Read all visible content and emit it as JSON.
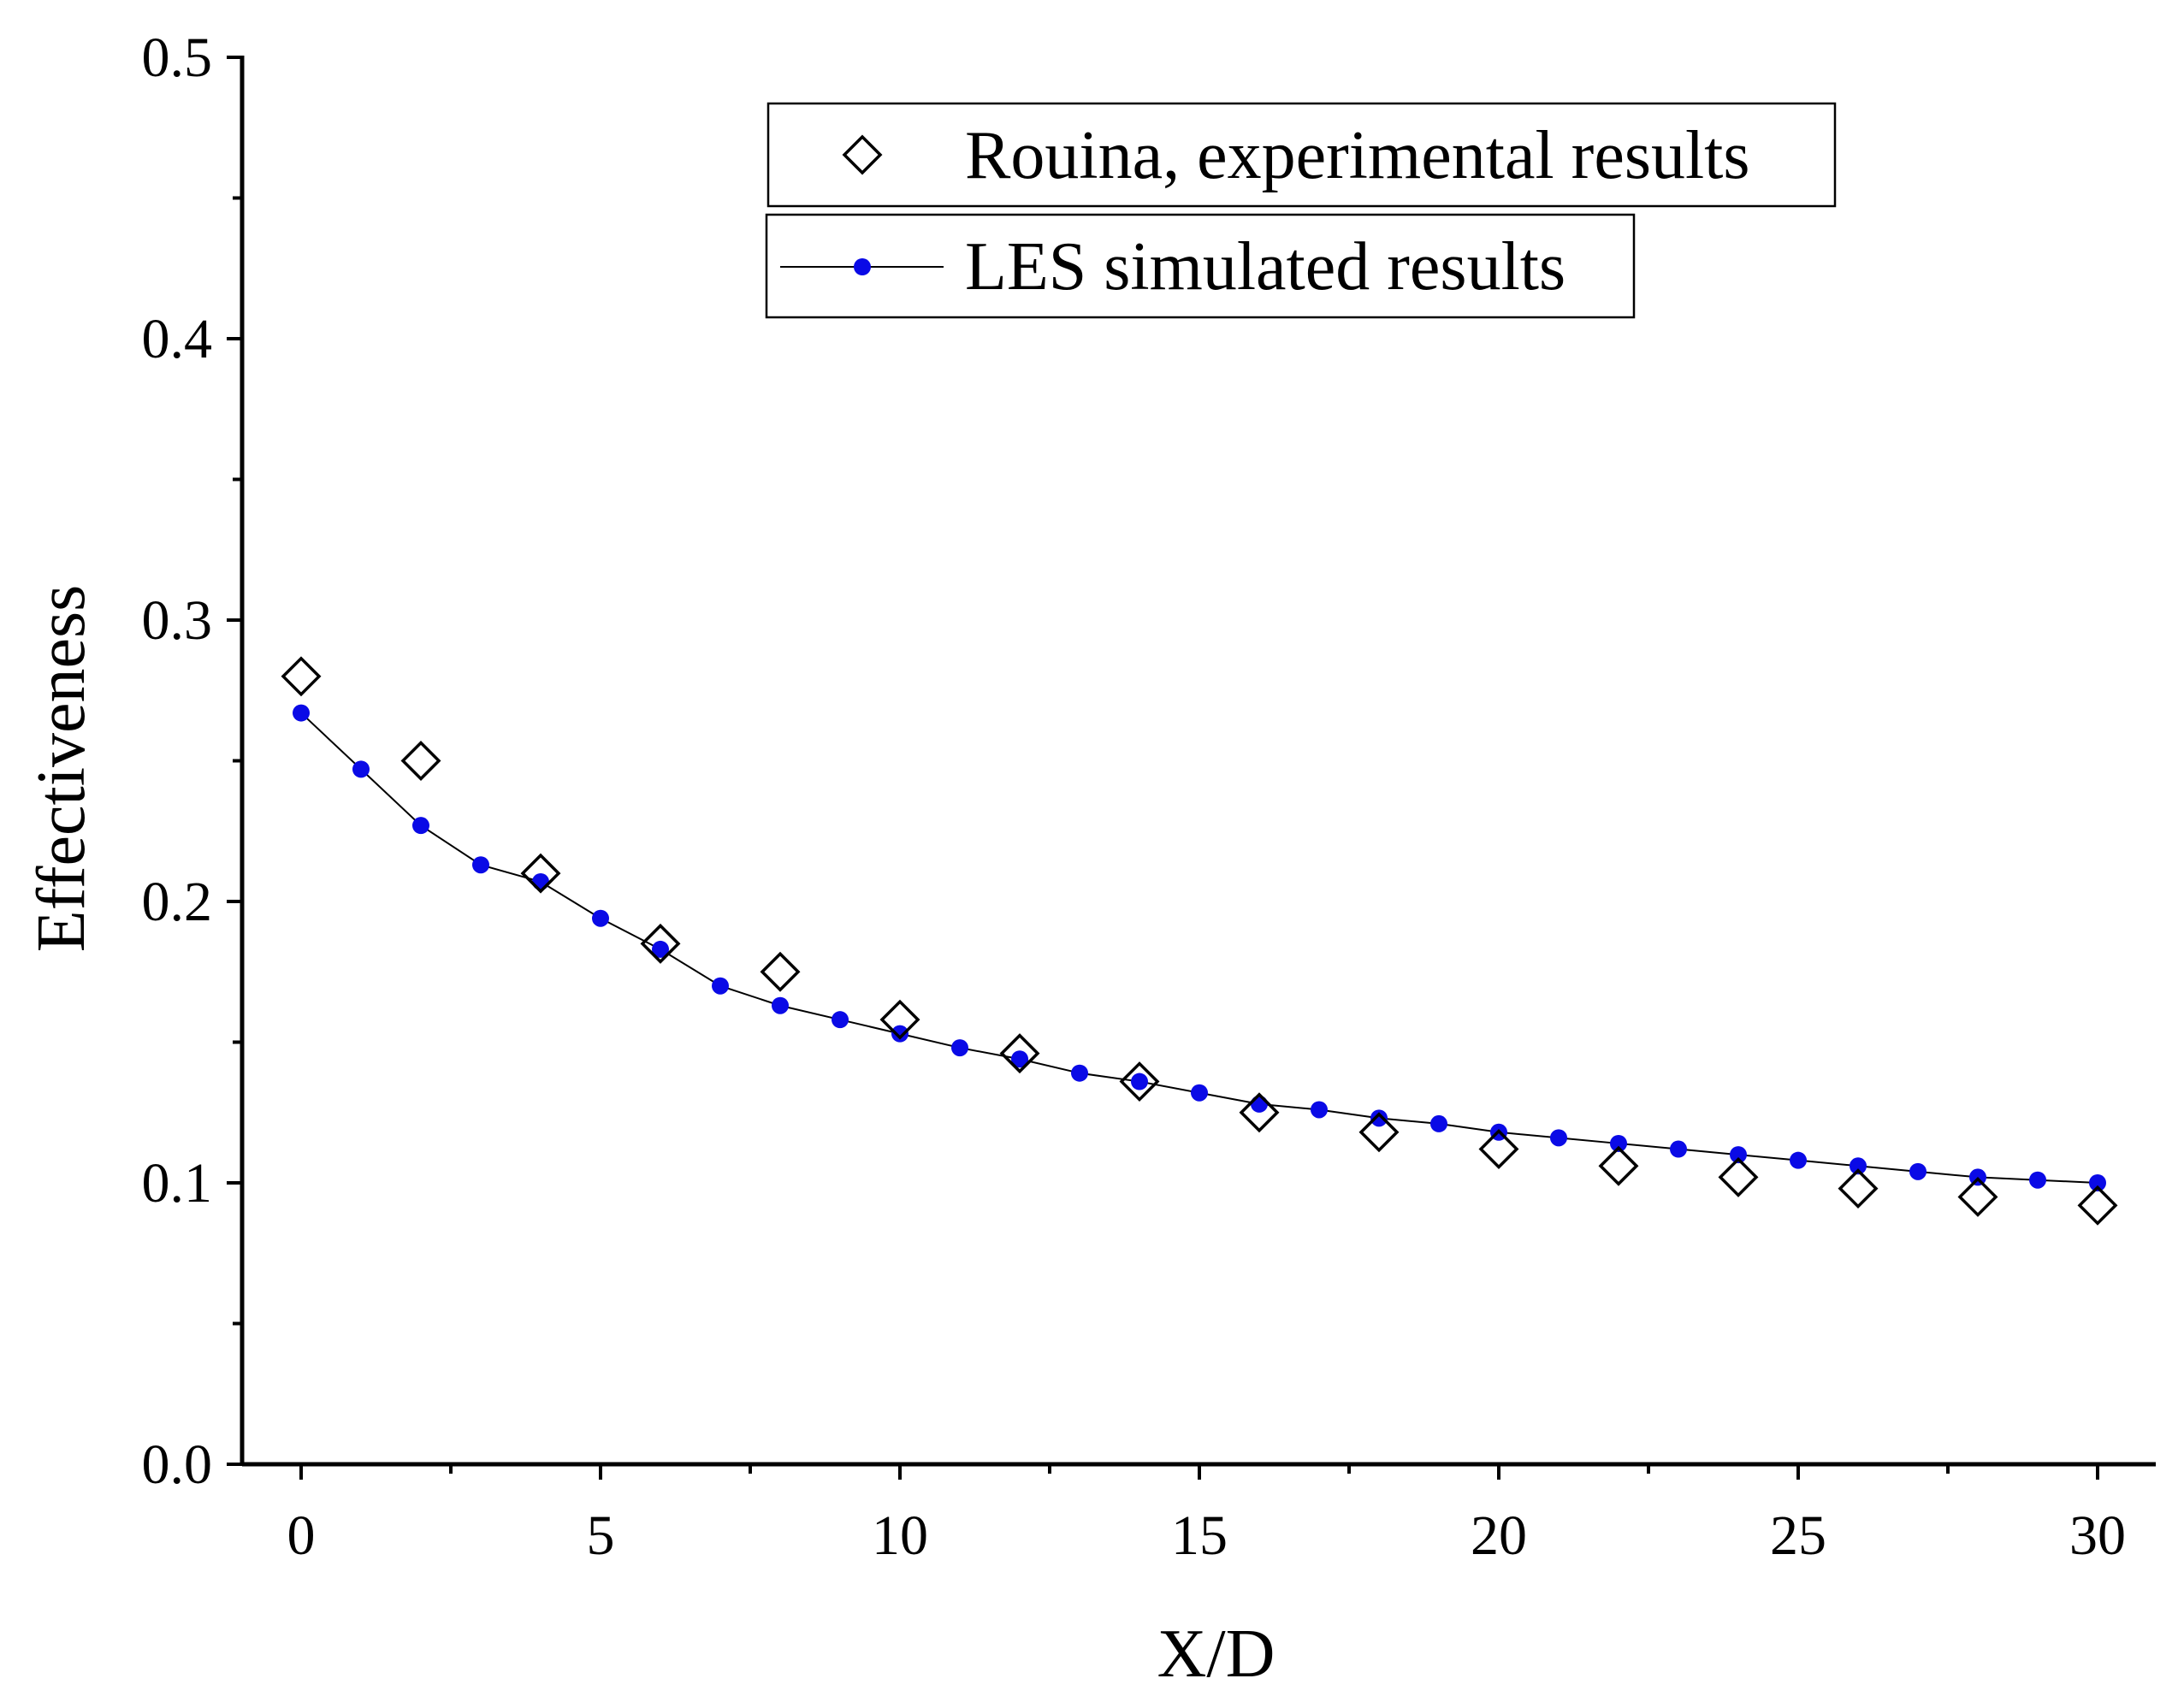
{
  "chart_data": {
    "type": "scatter",
    "title": "",
    "xlabel": "X/D",
    "ylabel": "Effectiveness",
    "xlim": [
      -1,
      31
    ],
    "ylim": [
      0.0,
      0.5
    ],
    "x_ticks": [
      0,
      5,
      10,
      15,
      20,
      25,
      30
    ],
    "x_tick_labels": [
      "0",
      "5",
      "10",
      "15",
      "20",
      "25",
      "30"
    ],
    "y_ticks": [
      0.0,
      0.1,
      0.2,
      0.3,
      0.4,
      0.5
    ],
    "y_tick_labels": [
      "0.0",
      "0.1",
      "0.2",
      "0.3",
      "0.4",
      "0.5"
    ],
    "grid": false,
    "legend_position": "top-right",
    "series": [
      {
        "name": "Rouina, experimental results",
        "marker": "open-diamond",
        "line": false,
        "color": "#000000",
        "x": [
          0,
          2,
          4,
          6,
          8,
          10,
          12,
          14,
          16,
          18,
          20,
          22,
          24,
          26,
          28,
          30
        ],
        "y": [
          0.28,
          0.25,
          0.21,
          0.185,
          0.175,
          0.158,
          0.146,
          0.136,
          0.125,
          0.118,
          0.112,
          0.106,
          0.102,
          0.098,
          0.095,
          0.092
        ]
      },
      {
        "name": "LES simulated results",
        "marker": "filled-circle",
        "line": true,
        "color": "#0a0ae6",
        "line_color": "#000000",
        "x": [
          0,
          1,
          2,
          3,
          4,
          5,
          6,
          7,
          8,
          9,
          10,
          11,
          12,
          13,
          14,
          15,
          16,
          17,
          18,
          19,
          20,
          21,
          22,
          23,
          24,
          25,
          26,
          27,
          28,
          29,
          30
        ],
        "y": [
          0.267,
          0.247,
          0.227,
          0.213,
          0.207,
          0.194,
          0.183,
          0.17,
          0.163,
          0.158,
          0.153,
          0.148,
          0.144,
          0.139,
          0.136,
          0.132,
          0.128,
          0.126,
          0.123,
          0.121,
          0.118,
          0.116,
          0.114,
          0.112,
          0.11,
          0.108,
          0.106,
          0.104,
          0.102,
          0.101,
          0.1
        ]
      }
    ]
  }
}
